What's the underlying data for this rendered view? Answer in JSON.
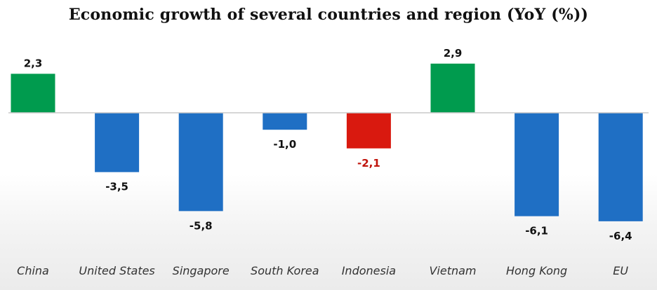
{
  "chart_data": {
    "type": "bar",
    "title": "Economic growth of several countries and region (YoY (%))",
    "categories": [
      "China",
      "United States",
      "Singapore",
      "South Korea",
      "Indonesia",
      "Vietnam",
      "Hong Kong",
      "EU"
    ],
    "values": [
      2.3,
      -3.5,
      -5.8,
      -1.0,
      -2.1,
      2.9,
      -6.1,
      -6.4
    ],
    "value_labels": [
      "2,3",
      "-3,5",
      "-5,8",
      "-1,0",
      "-2,1",
      "2,9",
      "-6,1",
      "-6,4"
    ],
    "bar_colors": [
      "#009b4e",
      "#1f6fc4",
      "#1f6fc4",
      "#1f6fc4",
      "#d9190f",
      "#009b4e",
      "#1f6fc4",
      "#1f6fc4"
    ],
    "label_colors": [
      "#111111",
      "#111111",
      "#111111",
      "#111111",
      "#c0140c",
      "#111111",
      "#111111",
      "#111111"
    ],
    "xlabel": "",
    "ylabel": "",
    "ylim": [
      -7,
      3
    ],
    "grid": false,
    "legend": "none"
  }
}
